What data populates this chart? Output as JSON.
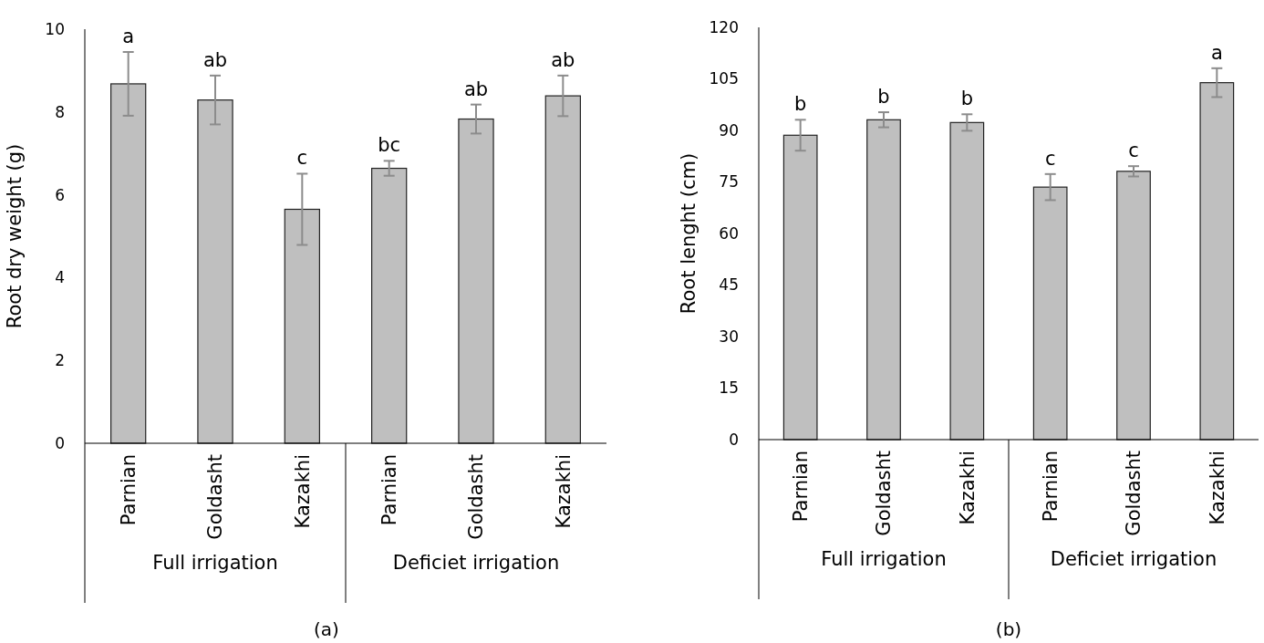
{
  "chart_data": [
    {
      "type": "bar",
      "title": "(a)",
      "ylabel": "Root dry weight (g)",
      "categories": [
        "Parnian",
        "Goldasht",
        "Kazakhi",
        "Parnian",
        "Goldasht",
        "Kazakhi"
      ],
      "values": [
        8.68,
        8.29,
        5.65,
        6.64,
        7.83,
        8.39
      ],
      "errors": [
        0.77,
        0.59,
        0.86,
        0.18,
        0.35,
        0.49
      ],
      "value_labels": [
        "a",
        "ab",
        "c",
        "bc",
        "ab",
        "ab"
      ],
      "color": "#bfbfbf",
      "ylim": [
        0,
        10
      ],
      "yticks": [
        0,
        2,
        4,
        6,
        8,
        10
      ],
      "grid": false,
      "annotations": [
        "Full irrigation",
        "Deficiet irrigation"
      ]
    },
    {
      "type": "bar",
      "title": "(b)",
      "ylabel": "Root lenght (cm)",
      "categories": [
        "Parnian",
        "Goldasht",
        "Kazakhi",
        "Parnian",
        "Goldasht",
        "Kazakhi"
      ],
      "values": [
        88.6,
        93.1,
        92.3,
        73.5,
        78.1,
        103.9
      ],
      "errors": [
        4.5,
        2.2,
        2.4,
        3.8,
        1.5,
        4.2
      ],
      "value_labels": [
        "b",
        "b",
        "b",
        "c",
        "c",
        "a"
      ],
      "color": "#bfbfbf",
      "ylim": [
        0,
        120
      ],
      "yticks": [
        0,
        15,
        30,
        45,
        60,
        75,
        90,
        105,
        120
      ],
      "grid": false,
      "annotations": [
        "Full irrigation",
        "Deficiet irrigation"
      ]
    }
  ]
}
